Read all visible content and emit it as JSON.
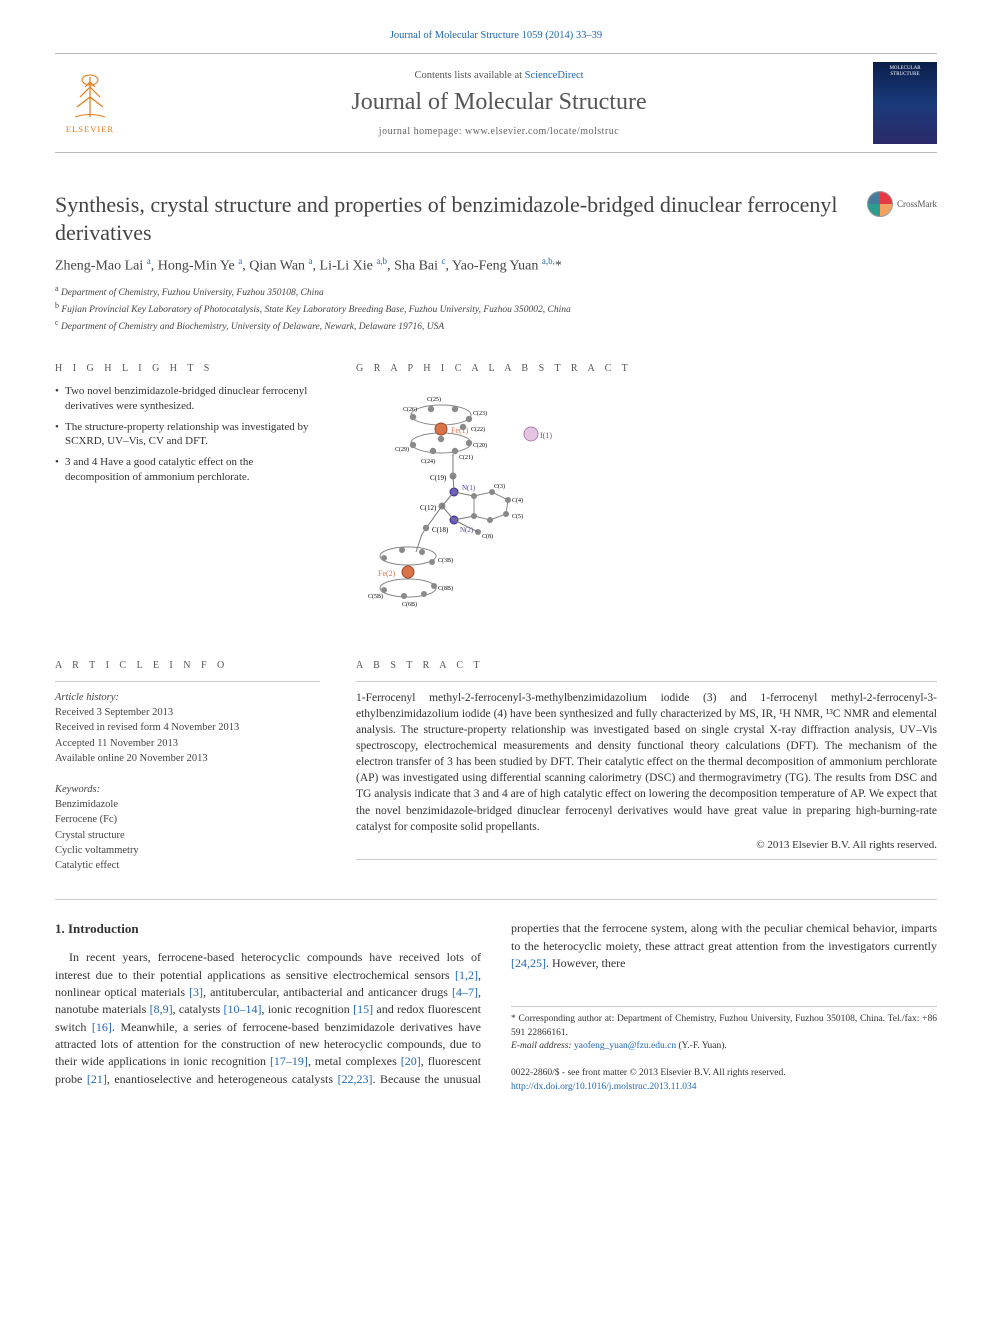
{
  "citation": "Journal of Molecular Structure 1059 (2014) 33–39",
  "header": {
    "contents_prefix": "Contents lists available at ",
    "contents_link": "ScienceDirect",
    "journal": "Journal of Molecular Structure",
    "homepage_label": "journal homepage: www.elsevier.com/locate/molstruc",
    "publisher": "ELSEVIER",
    "cover_title": "MOLECULAR STRUCTURE"
  },
  "title": "Synthesis, crystal structure and properties of benzimidazole-bridged dinuclear ferrocenyl derivatives",
  "crossmark": "CrossMark",
  "authors_html": "Zheng-Mao Lai <sup>a</sup>, Hong-Min Ye <sup>a</sup>, Qian Wan <sup>a</sup>, Li-Li Xie <sup>a,b</sup>, Sha Bai <sup>c</sup>, Yao-Feng Yuan <sup>a,b,</sup><span class='ast'>*</span>",
  "affiliations": {
    "a": "Department of Chemistry, Fuzhou University, Fuzhou 350108, China",
    "b": "Fujian Provincial Key Laboratory of Photocatalysis, State Key Laboratory Breeding Base, Fuzhou University, Fuzhou 350002, China",
    "c": "Department of Chemistry and Biochemistry, University of Delaware, Newark, Delaware 19716, USA"
  },
  "highlights_head": "H I G H L I G H T S",
  "highlights": [
    "Two novel benzimidazole-bridged dinuclear ferrocenyl derivatives were synthesized.",
    "The structure-property relationship was investigated by SCXRD, UV–Vis, CV and DFT.",
    "3 and 4 Have a good catalytic effect on the decomposition of ammonium perchlorate."
  ],
  "graphical_head": "G R A P H I C A L  A B S T R A C T",
  "article_info_head": "A R T I C L E  I N F O",
  "history": {
    "head": "Article history:",
    "received": "Received 3 September 2013",
    "revised": "Received in revised form 4 November 2013",
    "accepted": "Accepted 11 November 2013",
    "online": "Available online 20 November 2013"
  },
  "keywords_head": "Keywords:",
  "keywords": [
    "Benzimidazole",
    "Ferrocene (Fc)",
    "Crystal structure",
    "Cyclic voltammetry",
    "Catalytic effect"
  ],
  "abstract_head": "A B S T R A C T",
  "abstract": "1-Ferrocenyl methyl-2-ferrocenyl-3-methylbenzimidazolium iodide (3) and 1-ferrocenyl methyl-2-ferrocenyl-3-ethylbenzimidazolium iodide (4) have been synthesized and fully characterized by MS, IR, ¹H NMR, ¹³C NMR and elemental analysis. The structure-property relationship was investigated based on single crystal X-ray diffraction analysis, UV–Vis spectroscopy, electrochemical measurements and density functional theory calculations (DFT). The mechanism of the electron transfer of 3 has been studied by DFT. Their catalytic effect on the thermal decomposition of ammonium perchlorate (AP) was investigated using differential scanning calorimetry (DSC) and thermogravimetry (TG). The results from DSC and TG analysis indicate that 3 and 4 are of high catalytic effect on lowering the decomposition temperature of AP. We expect that the novel benzimidazole-bridged dinuclear ferrocenyl derivatives would have great value in preparing high-burning-rate catalyst for composite solid propellants.",
  "abstract_copyright": "© 2013 Elsevier B.V. All rights reserved.",
  "intro_head": "1. Introduction",
  "intro_para": "In recent years, ferrocene-based heterocyclic compounds have received lots of interest due to their potential applications as sensitive electrochemical sensors [1,2], nonlinear optical materials [3], antitubercular, antibacterial and anticancer drugs [4–7], nanotube materials [8,9], catalysts [10–14], ionic recognition [15] and redox fluorescent switch [16]. Meanwhile, a series of ferrocene-based benzimidazole derivatives have attracted lots of attention for the construction of new heterocyclic compounds, due to their wide applications in ionic recognition [17–19], metal complexes [20], fluorescent probe [21], enantioselective and heterogeneous catalysts [22,23]. Because the unusual properties that the ferrocene system, along with the peculiar chemical behavior, imparts to the heterocyclic moiety, these attract great attention from the investigators currently [24,25]. However, there",
  "corresp": {
    "line1": "* Corresponding author at: Department of Chemistry, Fuzhou University, Fuzhou 350108, China. Tel./fax: +86 591 22866161.",
    "email_label": "E-mail address: ",
    "email": "yaofeng_yuan@fzu.edu.cn",
    "email_suffix": " (Y.-F. Yuan)."
  },
  "footer": {
    "line1": "0022-2860/$ - see front matter © 2013 Elsevier B.V. All rights reserved.",
    "doi": "http://dx.doi.org/10.1016/j.molstruc.2013.11.034"
  },
  "colors": {
    "link": "#2268b3",
    "elsevier": "#e67817"
  }
}
